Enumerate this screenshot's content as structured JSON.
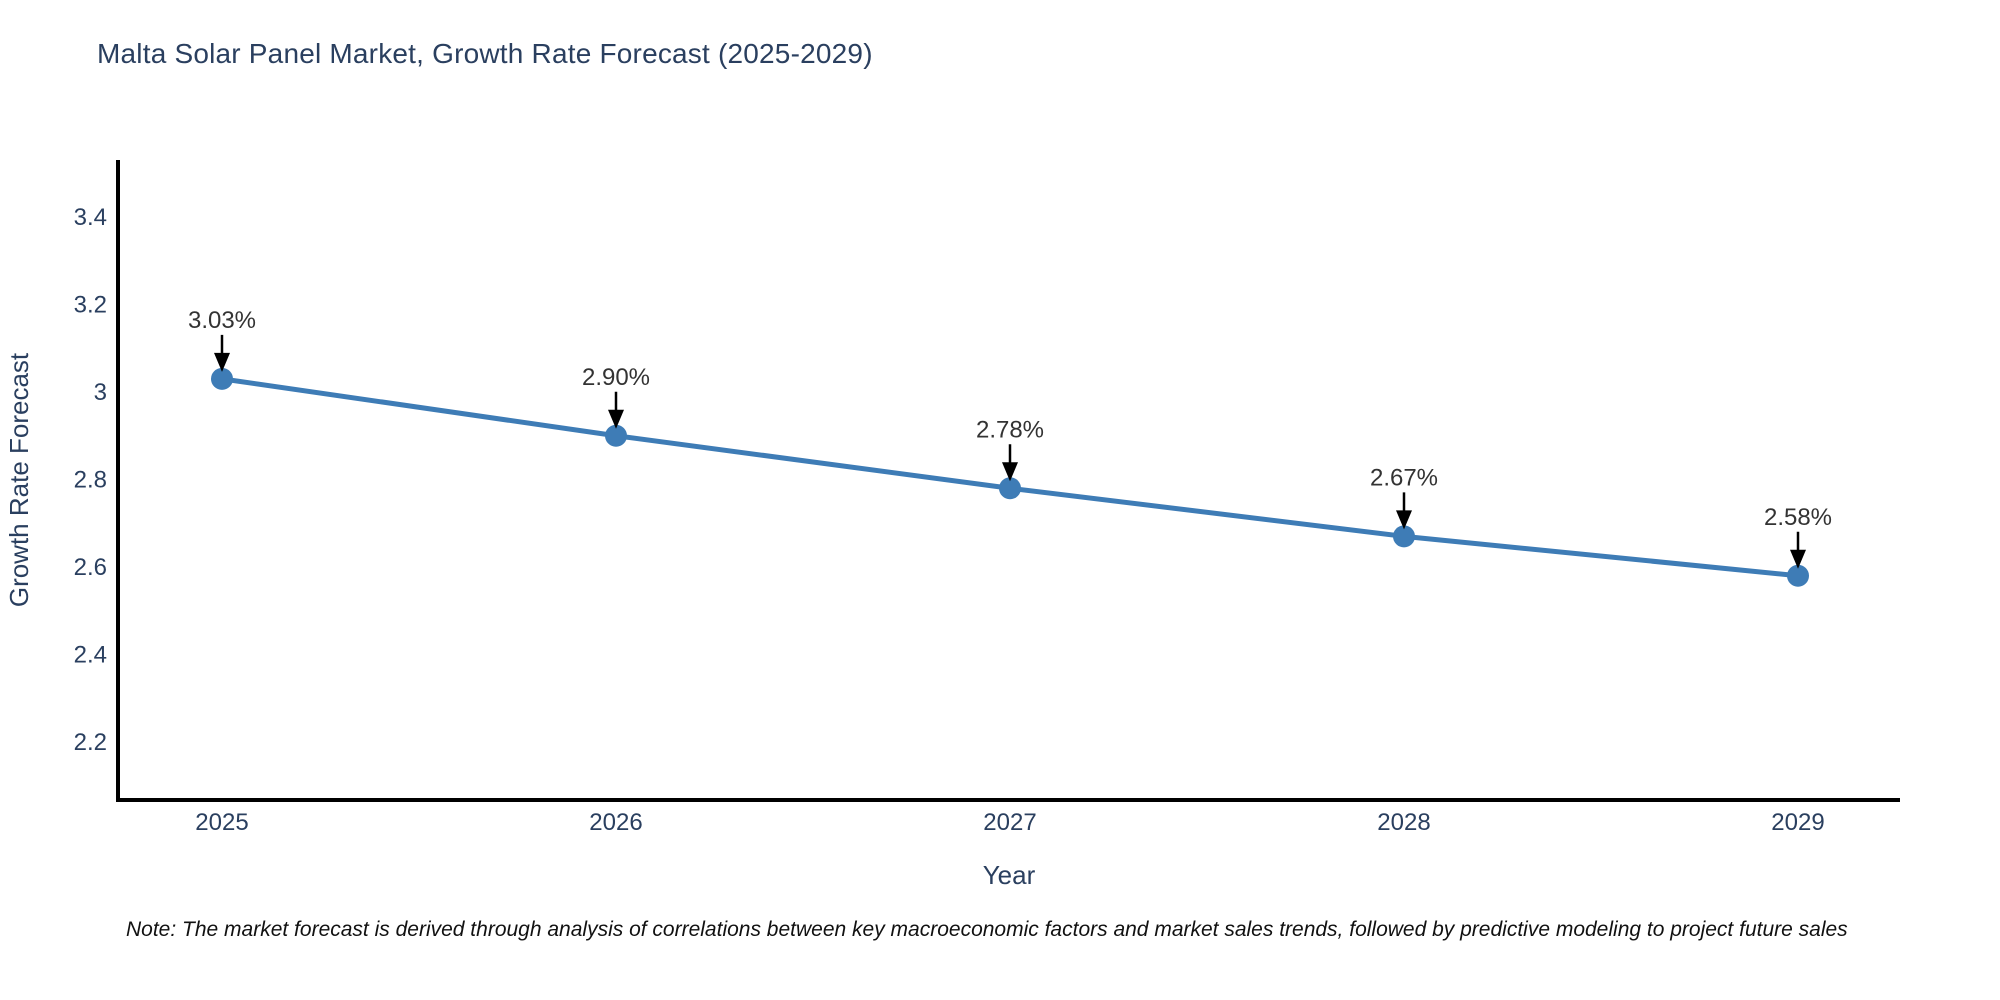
{
  "page": {
    "note": "Note: The market forecast is derived through analysis of correlations between key macroeconomic factors and market sales trends, followed by predictive modeling to project future sales"
  },
  "chart_data": {
    "type": "line",
    "title": "Malta Solar Panel Market, Growth Rate Forecast (2025-2029)",
    "xlabel": "Year",
    "ylabel": "Growth Rate Forecast",
    "categories": [
      "2025",
      "2026",
      "2027",
      "2028",
      "2029"
    ],
    "series": [
      {
        "name": "Growth Rate Forecast",
        "values": [
          3.03,
          2.9,
          2.78,
          2.67,
          2.58
        ],
        "point_labels": [
          "3.03%",
          "2.90%",
          "2.78%",
          "2.67%",
          "2.58%"
        ]
      }
    ],
    "y_ticks": {
      "values": [
        2.2,
        2.4,
        2.6,
        2.8,
        3,
        3.2,
        3.4
      ],
      "labels": [
        "2.2",
        "2.4",
        "2.6",
        "2.8",
        "3",
        "3.2",
        "3.4"
      ]
    },
    "ylim": [
      2.07,
      3.53
    ],
    "grid": false,
    "legend_position": "none",
    "annotation_style": "black-down-arrow-to-point",
    "colors": {
      "line": "#3e7cb6",
      "marker": "#3e7cb6",
      "axis": "#000000",
      "title_text": "#2a3f5f",
      "tick_text": "#2a3f5f",
      "annotation_text": "#333333",
      "arrow": "#000000",
      "note_text": "#111111",
      "background": "#ffffff"
    }
  }
}
